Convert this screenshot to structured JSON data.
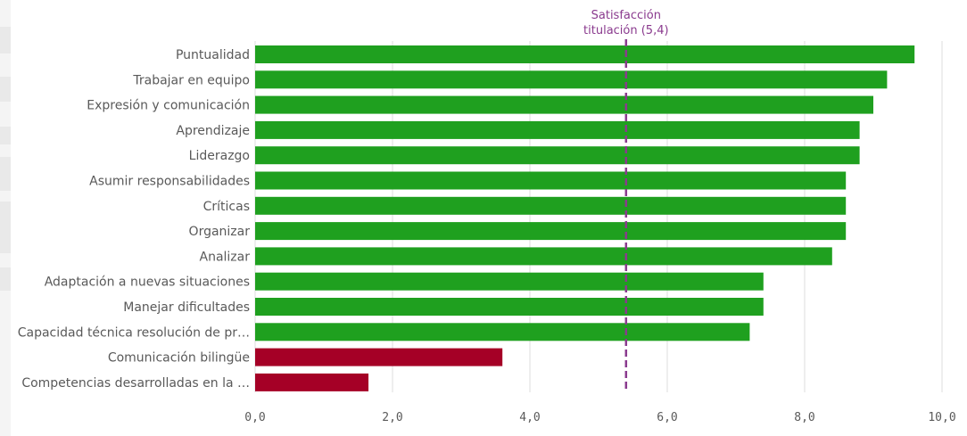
{
  "colors": {
    "above_reference": "#1fa01f",
    "below_reference": "#a50026",
    "reference_line": "#8a3a8e",
    "gridline": "#dddddd",
    "text": "#595959"
  },
  "chart_data": {
    "type": "bar",
    "orientation": "horizontal",
    "title": "",
    "xlabel": "",
    "ylabel": "",
    "xlim": [
      0,
      10
    ],
    "grid": true,
    "legend": "none",
    "x_ticks": [
      "0,0",
      "2,0",
      "4,0",
      "6,0",
      "8,0",
      "10,0"
    ],
    "x_tick_values": [
      0,
      2,
      4,
      6,
      8,
      10
    ],
    "reference_line": {
      "value": 5.4,
      "label_line1": "Satisfacción",
      "label_line2": "titulación (5,4)"
    },
    "categories": [
      "Puntualidad",
      "Trabajar en equipo",
      "Expresión y comunicación",
      "Aprendizaje",
      "Liderazgo",
      "Asumir responsabilidades",
      "Críticas",
      "Organizar",
      "Analizar",
      "Adaptación a nuevas situaciones",
      "Manejar dificultades",
      "Capacidad técnica resolución de pr…",
      "Comunicación bilingüe",
      "Competencias desarrolladas en la …"
    ],
    "values": [
      9.6,
      9.2,
      9.0,
      8.8,
      8.8,
      8.6,
      8.6,
      8.6,
      8.4,
      7.4,
      7.4,
      7.2,
      3.6,
      1.65
    ]
  }
}
